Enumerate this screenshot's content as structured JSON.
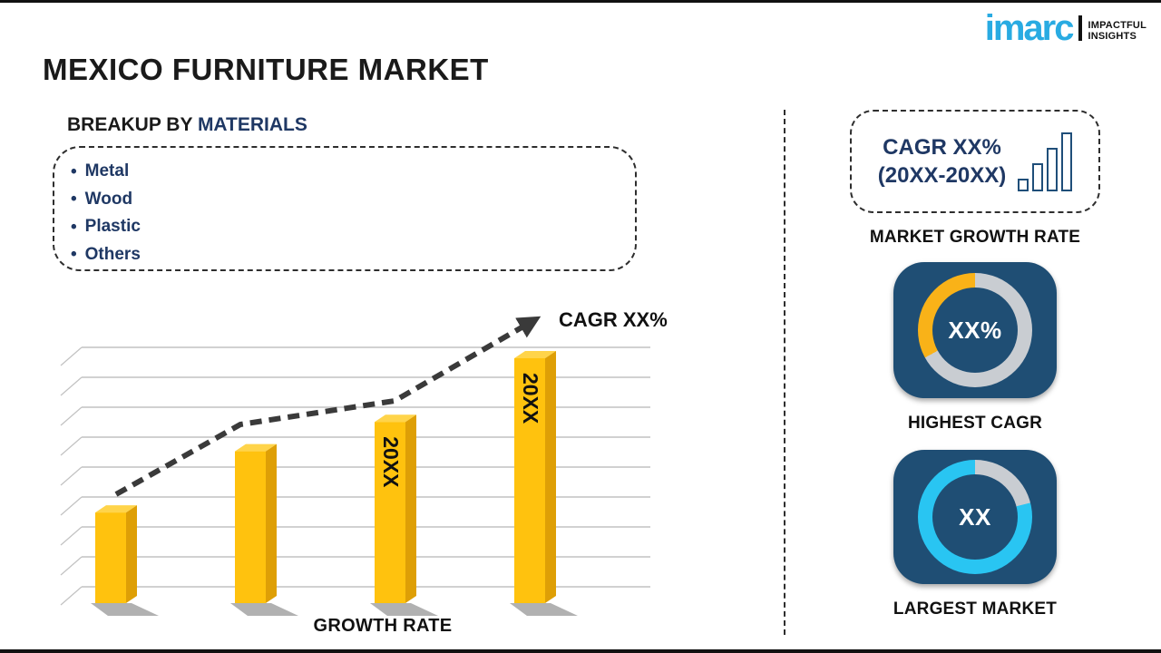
{
  "colors": {
    "brand_cyan": "#29ABE2",
    "navy_text": "#1F3864",
    "card_navy": "#1F4E74",
    "bar_yellow": "#FFC20E",
    "donut_gray": "#C9CDD2",
    "donut_yellow": "#F9B218",
    "donut_cyan": "#29C5F2"
  },
  "logo": {
    "brand": "imarc",
    "tagline_line1": "IMPACTFUL",
    "tagline_line2": "INSIGHTS"
  },
  "title": "MEXICO FURNITURE MARKET",
  "breakup": {
    "heading_prefix": "BREAKUP BY ",
    "heading_highlight": "MATERIALS",
    "bullet_char": "•",
    "items": [
      "Metal",
      "Wood",
      "Plastic",
      "Others"
    ]
  },
  "chart_data": {
    "type": "bar",
    "title": "",
    "xlabel": "GROWTH RATE",
    "ylabel": "",
    "categories": [
      "",
      "",
      "20XX",
      "20XX"
    ],
    "values": [
      37,
      62,
      74,
      100
    ],
    "values_note": "placeholder chart; heights relative, no numeric axis shown",
    "ylim": [
      0,
      100
    ],
    "grid": {
      "count": 9,
      "top": 48,
      "spacing": 33,
      "color": "#c2c2c2",
      "style": "3d-depth-ticks"
    },
    "bar_colors": {
      "front": "#FFC20E",
      "side": "#DE9F06",
      "top": "#FFD44A"
    },
    "trend_label": "CAGR XX%",
    "trend_color": "#3a3a3a",
    "trend_style": "dashed-arrow",
    "trend_points": [
      [
        66,
        210
      ],
      [
        203,
        133
      ],
      [
        373,
        107
      ],
      [
        527,
        18
      ]
    ]
  },
  "right_panel": {
    "growth_box": {
      "line1": "CAGR XX%",
      "line2": "(20XX-20XX)"
    },
    "growth_box_label": "MARKET GROWTH RATE",
    "highest_cagr": {
      "value": "XX%",
      "label": "HIGHEST CAGR",
      "ring": {
        "stops": [
          {
            "color": "#C9CDD2",
            "from": 0,
            "to": 67
          },
          {
            "color": "#F9B218",
            "from": 67,
            "to": 100
          }
        ]
      }
    },
    "largest_market": {
      "value": "XX",
      "label": "LARGEST MARKET",
      "ring": {
        "stops": [
          {
            "color": "#C9CDD2",
            "from": 0,
            "to": 21
          },
          {
            "color": "#29C5F2",
            "from": 21,
            "to": 100
          }
        ]
      }
    }
  }
}
